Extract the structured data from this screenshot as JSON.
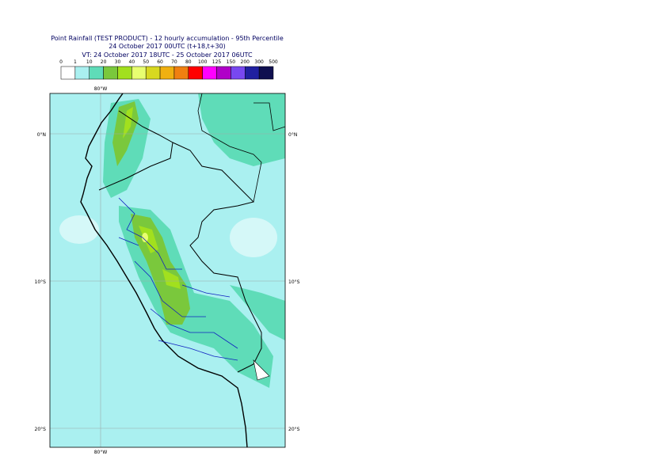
{
  "header": {
    "title_lines": [
      "Point Rainfall (TEST PRODUCT) - 12 hourly accumulation - 95th Percentile",
      "24 October 2017 00UTC (t+18,t+30)",
      "VT: 24 October 2017 18UTC - 25 October 2017 06UTC"
    ]
  },
  "legend": {
    "labels": [
      "0",
      "1",
      "10",
      "20",
      "30",
      "40",
      "50",
      "60",
      "70",
      "80",
      "100",
      "125",
      "150",
      "200",
      "300",
      "500"
    ],
    "colors": [
      "#ffffff",
      "#aaf0f0",
      "#5fdcb8",
      "#7ac83c",
      "#a2e01e",
      "#e8ff70",
      "#d8d820",
      "#f0b010",
      "#f08010",
      "#ff0000",
      "#ff00ff",
      "#b000c8",
      "#7848f0",
      "#2020a0",
      "#101050"
    ]
  },
  "map": {
    "lat_lines": [
      {
        "value": 0,
        "label": "0°N"
      },
      {
        "value": -10,
        "label": "10°S"
      },
      {
        "value": -20,
        "label": "20°S"
      }
    ],
    "lon_lines": [
      {
        "value": -80,
        "label": "80°W"
      }
    ]
  }
}
